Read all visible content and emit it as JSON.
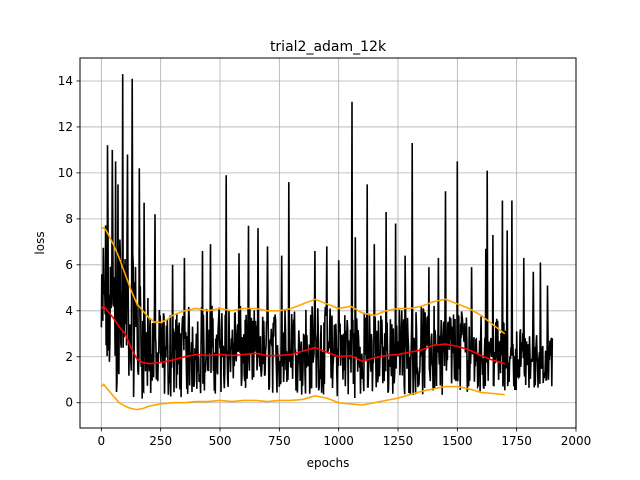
{
  "chart_data": {
    "type": "line",
    "title": "trial2_adam_12k",
    "xlabel": "epochs",
    "ylabel": "loss",
    "xlim": [
      -90,
      2000
    ],
    "ylim": [
      -1.1,
      15
    ],
    "xticks": [
      0,
      250,
      500,
      750,
      1000,
      1250,
      1500,
      1750,
      2000
    ],
    "yticks": [
      0,
      2,
      4,
      6,
      8,
      10,
      12,
      14
    ],
    "grid": true,
    "raw": {
      "color": "#000000",
      "x_start": 0,
      "x_end": 1900,
      "step": 2,
      "envelope_x": [
        0,
        10,
        20,
        50,
        100,
        150,
        200,
        250,
        300,
        400,
        500,
        600,
        700,
        800,
        900,
        1000,
        1100,
        1200,
        1300,
        1400,
        1500,
        1600,
        1700,
        1800,
        1900
      ],
      "envelope_low": [
        0.5,
        0.5,
        0.4,
        0.4,
        0.3,
        0.2,
        0.1,
        0.1,
        0.2,
        0.3,
        0.4,
        0.4,
        0.4,
        0.3,
        0.3,
        0.2,
        0.2,
        0.3,
        0.3,
        0.3,
        0.4,
        0.5,
        0.5,
        0.6,
        0.6
      ],
      "envelope_high": [
        5.0,
        8.0,
        8.5,
        8.0,
        7.5,
        6.0,
        4.5,
        4.0,
        4.0,
        4.3,
        4.3,
        4.2,
        4.0,
        4.2,
        4.3,
        4.2,
        4.0,
        4.0,
        4.2,
        4.3,
        4.2,
        4.0,
        3.5,
        3.2,
        3.0
      ],
      "spikes": [
        {
          "x": 90,
          "y": 14.3
        },
        {
          "x": 130,
          "y": 14.1
        },
        {
          "x": 1055,
          "y": 13.1
        },
        {
          "x": 25,
          "y": 11.2
        },
        {
          "x": 45,
          "y": 11.0
        },
        {
          "x": 60,
          "y": 10.5
        },
        {
          "x": 110,
          "y": 10.8
        },
        {
          "x": 160,
          "y": 10.2
        },
        {
          "x": 70,
          "y": 9.5
        },
        {
          "x": 1310,
          "y": 11.3
        },
        {
          "x": 1500,
          "y": 10.5
        },
        {
          "x": 1625,
          "y": 10.1
        },
        {
          "x": 525,
          "y": 9.9
        },
        {
          "x": 1450,
          "y": 9.2
        },
        {
          "x": 1730,
          "y": 8.8
        },
        {
          "x": 180,
          "y": 8.7
        },
        {
          "x": 225,
          "y": 8.2
        },
        {
          "x": 790,
          "y": 9.6
        },
        {
          "x": 1120,
          "y": 9.5
        },
        {
          "x": 1200,
          "y": 8.3
        },
        {
          "x": 1240,
          "y": 7.8
        },
        {
          "x": 620,
          "y": 7.7
        },
        {
          "x": 660,
          "y": 7.6
        },
        {
          "x": 1070,
          "y": 7.2
        },
        {
          "x": 1690,
          "y": 8.8
        },
        {
          "x": 1710,
          "y": 7.5
        },
        {
          "x": 1650,
          "y": 7.3
        },
        {
          "x": 1780,
          "y": 6.3
        },
        {
          "x": 1850,
          "y": 6.1
        },
        {
          "x": 1620,
          "y": 6.7
        },
        {
          "x": 300,
          "y": 6.0
        },
        {
          "x": 350,
          "y": 6.3
        },
        {
          "x": 425,
          "y": 6.6
        },
        {
          "x": 460,
          "y": 6.9
        },
        {
          "x": 580,
          "y": 6.5
        },
        {
          "x": 700,
          "y": 6.8
        },
        {
          "x": 760,
          "y": 6.4
        },
        {
          "x": 900,
          "y": 6.6
        },
        {
          "x": 950,
          "y": 6.8
        },
        {
          "x": 1000,
          "y": 6.2
        },
        {
          "x": 1150,
          "y": 6.9
        },
        {
          "x": 1280,
          "y": 6.4
        },
        {
          "x": 1380,
          "y": 5.9
        },
        {
          "x": 1420,
          "y": 6.3
        },
        {
          "x": 1560,
          "y": 5.9
        },
        {
          "x": 1820,
          "y": 5.7
        },
        {
          "x": 1880,
          "y": 5.1
        }
      ]
    },
    "series": [
      {
        "name": "",
        "color": "#ffa500",
        "x": [
          0,
          10,
          20,
          30,
          50,
          75,
          100,
          125,
          150,
          175,
          200,
          225,
          250,
          275,
          300,
          350,
          400,
          450,
          500,
          550,
          600,
          650,
          700,
          750,
          800,
          850,
          900,
          950,
          1000,
          1050,
          1100,
          1150,
          1200,
          1250,
          1300,
          1350,
          1400,
          1450,
          1500,
          1550,
          1600,
          1650,
          1700
        ],
        "values": [
          7.6,
          7.6,
          7.5,
          7.3,
          6.9,
          6.3,
          5.6,
          4.9,
          4.3,
          4.0,
          3.7,
          3.5,
          3.5,
          3.6,
          3.8,
          4.0,
          4.1,
          4.0,
          4.1,
          4.0,
          4.1,
          4.1,
          4.0,
          4.0,
          4.1,
          4.3,
          4.5,
          4.3,
          4.1,
          4.2,
          3.9,
          3.8,
          4.0,
          4.1,
          4.1,
          4.2,
          4.4,
          4.5,
          4.3,
          4.1,
          3.8,
          3.4,
          3.0
        ]
      },
      {
        "name": "",
        "color": "#ff0000",
        "x": [
          0,
          10,
          25,
          50,
          75,
          100,
          125,
          150,
          175,
          200,
          250,
          300,
          350,
          400,
          450,
          500,
          550,
          600,
          650,
          700,
          750,
          800,
          850,
          900,
          950,
          1000,
          1050,
          1100,
          1150,
          1200,
          1250,
          1300,
          1350,
          1400,
          1450,
          1500,
          1550,
          1600,
          1650,
          1700
        ],
        "values": [
          4.1,
          4.2,
          4.0,
          3.7,
          3.3,
          3.0,
          2.4,
          1.9,
          1.75,
          1.7,
          1.75,
          1.85,
          2.0,
          2.1,
          2.05,
          2.1,
          2.05,
          2.1,
          2.15,
          2.05,
          2.05,
          2.1,
          2.25,
          2.4,
          2.2,
          2.0,
          2.05,
          1.8,
          1.95,
          2.05,
          2.1,
          2.2,
          2.3,
          2.5,
          2.55,
          2.45,
          2.3,
          2.05,
          1.85,
          1.7
        ]
      },
      {
        "name": "",
        "color": "#ffa500",
        "x": [
          0,
          10,
          25,
          50,
          75,
          100,
          125,
          150,
          175,
          200,
          250,
          300,
          350,
          400,
          450,
          500,
          550,
          600,
          650,
          700,
          750,
          800,
          850,
          900,
          950,
          1000,
          1050,
          1100,
          1150,
          1200,
          1250,
          1300,
          1350,
          1400,
          1450,
          1500,
          1550,
          1600,
          1650,
          1700
        ],
        "values": [
          0.7,
          0.8,
          0.6,
          0.3,
          0.0,
          -0.15,
          -0.25,
          -0.3,
          -0.25,
          -0.15,
          -0.05,
          0.0,
          0.0,
          0.05,
          0.05,
          0.1,
          0.05,
          0.1,
          0.1,
          0.05,
          0.1,
          0.1,
          0.15,
          0.3,
          0.2,
          0.0,
          -0.05,
          -0.1,
          0.0,
          0.1,
          0.2,
          0.35,
          0.5,
          0.6,
          0.7,
          0.7,
          0.6,
          0.45,
          0.4,
          0.35
        ]
      }
    ]
  }
}
